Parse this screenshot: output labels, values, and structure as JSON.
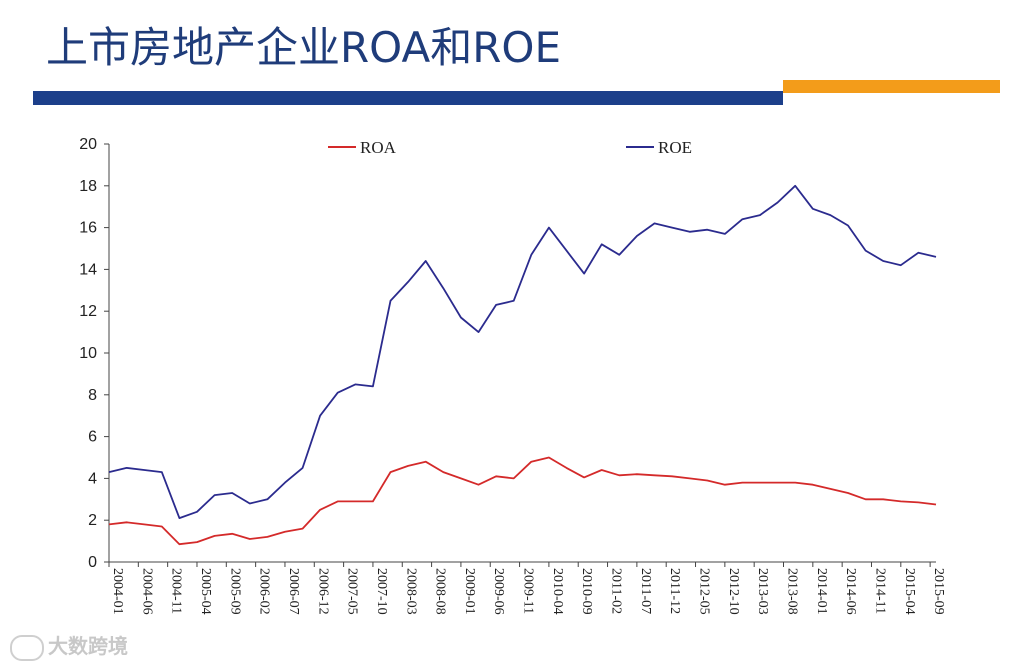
{
  "page": {
    "title": "上市房地产企业ROA和ROE"
  },
  "colors": {
    "title": "#1f3c7a",
    "bar_blue": "#1c3f8a",
    "bar_orange": "#f39c1a",
    "roa": "#d42a2a",
    "roe": "#2b2b8e"
  },
  "watermark": {
    "text": "大数跨境",
    "icon": "logo-icon"
  },
  "chart_data": {
    "type": "line",
    "title": "",
    "xlabel": "",
    "ylabel": "",
    "ylim": [
      0,
      20
    ],
    "yticks": [
      0,
      2,
      4,
      6,
      8,
      10,
      12,
      14,
      16,
      18,
      20
    ],
    "grid": false,
    "legend": "top",
    "x_tick_labels": [
      "2004-01",
      "2004-06",
      "2004-11",
      "2005-04",
      "2005-09",
      "2006-02",
      "2006-07",
      "2006-12",
      "2007-05",
      "2007-10",
      "2008-03",
      "2008-08",
      "2009-01",
      "2009-06",
      "2009-11",
      "2010-04",
      "2010-09",
      "2011-02",
      "2011-07",
      "2011-12",
      "2012-05",
      "2012-10",
      "2013-03",
      "2013-08",
      "2014-01",
      "2014-06",
      "2014-11",
      "2015-04",
      "2015-09"
    ],
    "x_tick_step_months": 5,
    "series": [
      {
        "name": "ROE",
        "color": "#2b2b8e",
        "values": [
          4.3,
          4.5,
          4.4,
          4.3,
          2.1,
          2.4,
          3.2,
          3.3,
          2.8,
          3.0,
          3.8,
          4.5,
          7.0,
          8.1,
          8.5,
          8.4,
          12.5,
          13.4,
          14.4,
          13.1,
          11.7,
          11.0,
          12.3,
          12.5,
          14.7,
          16.0,
          14.9,
          13.8,
          15.2,
          14.7,
          15.6,
          16.2,
          16.0,
          15.8,
          15.9,
          15.7,
          16.4,
          16.6,
          17.2,
          18.0,
          16.9,
          16.6,
          16.1,
          14.9,
          14.4,
          14.2,
          14.8,
          14.6
        ]
      },
      {
        "name": "ROA",
        "color": "#d42a2a",
        "values": [
          1.8,
          1.9,
          1.8,
          1.7,
          0.85,
          0.95,
          1.25,
          1.35,
          1.1,
          1.2,
          1.45,
          1.6,
          2.5,
          2.9,
          2.9,
          2.9,
          4.3,
          4.6,
          4.8,
          4.3,
          4.0,
          3.7,
          4.1,
          4.0,
          4.8,
          5.0,
          4.5,
          4.05,
          4.4,
          4.15,
          4.2,
          4.15,
          4.1,
          4.0,
          3.9,
          3.7,
          3.8,
          3.8,
          3.8,
          3.8,
          3.7,
          3.5,
          3.3,
          3.0,
          3.0,
          2.9,
          2.85,
          2.75
        ]
      }
    ]
  }
}
